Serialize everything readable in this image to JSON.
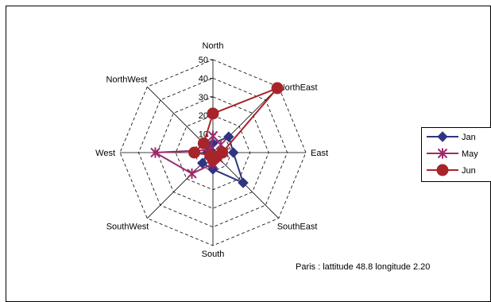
{
  "chart_data": {
    "type": "radar",
    "categories": [
      "North",
      "NorthEast",
      "East",
      "SouthEast",
      "South",
      "SouthWest",
      "West",
      "NorthWest"
    ],
    "r_ticks": [
      "10",
      "20",
      "30",
      "40",
      "50"
    ],
    "rlim": [
      0,
      50
    ],
    "grid": "dashed",
    "series": [
      {
        "name": "Jan",
        "values": [
          5,
          12,
          11,
          23,
          9,
          8,
          3,
          2
        ],
        "color": "#2f3580",
        "marker": "diamond"
      },
      {
        "name": "May",
        "values": [
          9,
          6,
          6,
          4,
          6,
          16,
          31,
          2
        ],
        "color": "#9c2a6c",
        "marker": "asterisk"
      },
      {
        "name": "Jun",
        "values": [
          21,
          49,
          5,
          3,
          4,
          2,
          10,
          7
        ],
        "color": "#a8242b",
        "marker": "circle"
      }
    ],
    "legend_position": "right",
    "annotation": "Paris : lattitude 48.8 longitude 2.20"
  }
}
